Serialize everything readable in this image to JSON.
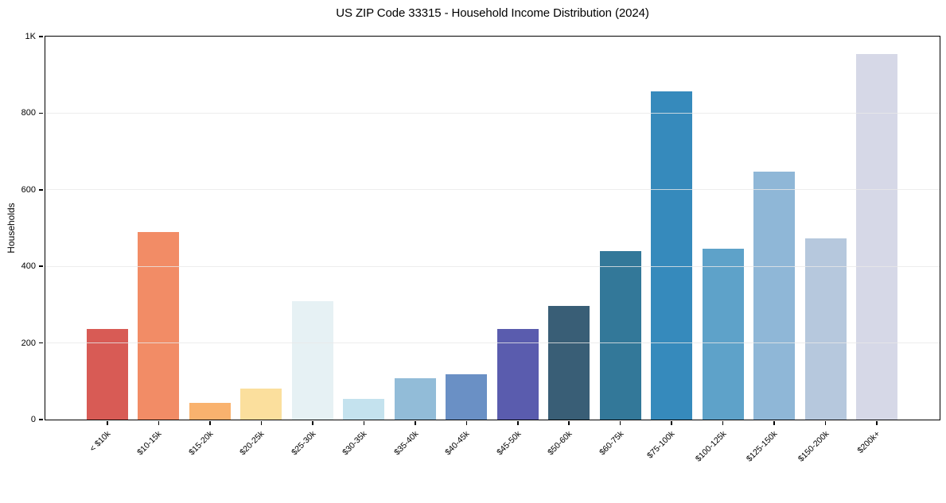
{
  "chart_data": {
    "type": "bar",
    "title": "US ZIP Code 33315 - Household Income Distribution (2024)",
    "ylabel": "Households",
    "xlabel": "",
    "ylim": [
      0,
      1000
    ],
    "ytick_values": [
      0,
      200,
      400,
      600,
      800,
      1000
    ],
    "ytick_labels": [
      "0",
      "200",
      "400",
      "600",
      "800",
      "1K"
    ],
    "grid": "horizontal",
    "legend": "none",
    "categories": [
      "< $10k",
      "$10-15k",
      "$15-20k",
      "$20-25k",
      "$25-30k",
      "$30-35k",
      "$35-40k",
      "$40-45k",
      "$45-50k",
      "$50-60k",
      "$60-75k",
      "$75-100k",
      "$100-125k",
      "$125-150k",
      "$150-200k",
      "$200k+"
    ],
    "values": [
      237,
      490,
      44,
      80,
      310,
      54,
      108,
      118,
      236,
      296,
      440,
      857,
      446,
      648,
      473,
      955
    ],
    "bar_colors": [
      "#d85b55",
      "#f28c66",
      "#f9b26e",
      "#fbdf9d",
      "#e6f1f4",
      "#c4e2ee",
      "#92bcd8",
      "#6a90c5",
      "#5a5cae",
      "#395e76",
      "#337899",
      "#368abc",
      "#5ea2c9",
      "#8fb7d7",
      "#b6c8dd",
      "#d6d8e7"
    ],
    "colors": {
      "grid": "#ececec",
      "axis": "#000000",
      "background": "#ffffff",
      "text": "#000000"
    }
  }
}
